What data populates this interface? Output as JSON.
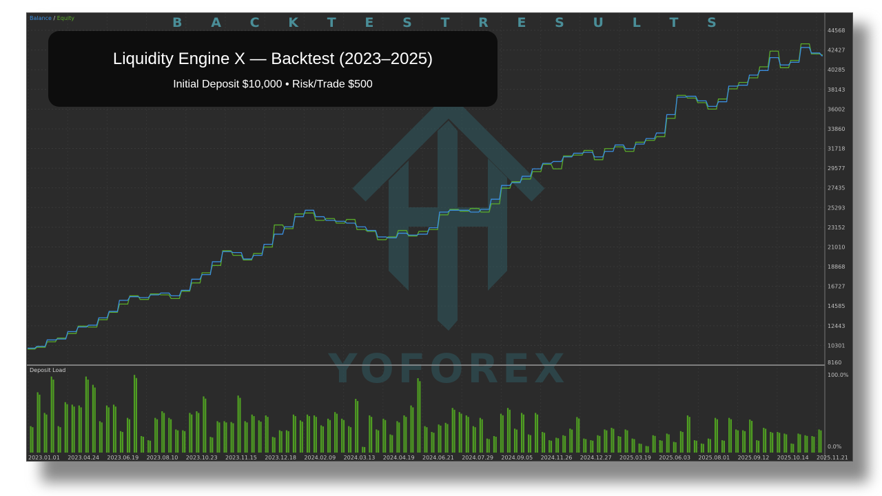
{
  "headline": [
    "B",
    "A",
    "C",
    "K",
    "T",
    "E",
    "S",
    "T",
    "R",
    "E",
    "S",
    "U",
    "L",
    "T",
    "S"
  ],
  "title_box": {
    "title": "Liquidity Engine X — Backtest (2023–2025)",
    "subtitle": "Initial Deposit $10,000 • Risk/Trade $500"
  },
  "watermark": {
    "text": "YOFOREX"
  },
  "colors": {
    "balance": "#3a8ee0",
    "equity": "#5aab2a",
    "bars": "#4f9e22",
    "headline": "#4a8e98",
    "background": "#2b2b2b"
  },
  "chart_data": [
    {
      "type": "line",
      "legend": {
        "balance_label": "Balance",
        "separator": " / ",
        "equity_label": "Equity",
        "placement": "top-left"
      },
      "x_tick_labels": [
        "2023.01.01",
        "2023.04.24",
        "2023.06.19",
        "2023.08.10",
        "2023.10.23",
        "2023.11.15",
        "2023.12.18",
        "2024.02.09",
        "2024.03.13",
        "2024.04.19",
        "2024.06.21",
        "2024.07.29",
        "2024.09.05",
        "2024.11.26",
        "2024.12.27",
        "2025.03.19",
        "2025.06.03",
        "2025.08.01",
        "2025.09.12",
        "2025.10.14",
        "2025.11.21"
      ],
      "y_tick_labels": [
        "44568",
        "42427",
        "40285",
        "38143",
        "36002",
        "33860",
        "31718",
        "29577",
        "27435",
        "25293",
        "23152",
        "21010",
        "18868",
        "16727",
        "14585",
        "12443",
        "10301",
        "8160"
      ],
      "ylim": [
        8160,
        44568
      ],
      "grid": true,
      "series": [
        {
          "name": "Balance",
          "values": [
            10000,
            10200,
            10900,
            11000,
            11800,
            12300,
            12500,
            13300,
            14000,
            15200,
            15600,
            15500,
            15800,
            16000,
            15700,
            16300,
            17500,
            18000,
            19400,
            20500,
            20400,
            19700,
            20100,
            21300,
            22400,
            23200,
            24300,
            25000,
            24300,
            23900,
            23800,
            23600,
            23200,
            22800,
            22100,
            22000,
            22500,
            22300,
            22400,
            23100,
            24800,
            25000,
            25000,
            24800,
            25100,
            26200,
            27700,
            28000,
            28700,
            29500,
            30100,
            30300,
            30800,
            31200,
            31300,
            30800,
            31400,
            32100,
            31700,
            32200,
            32800,
            33400,
            35400,
            37300,
            37400,
            36900,
            36300,
            36800,
            38500,
            38600,
            39700,
            40200,
            41600,
            40800,
            41100,
            42700,
            42100,
            41800
          ]
        },
        {
          "name": "Equity",
          "values": [
            9900,
            10100,
            10700,
            11100,
            11600,
            12400,
            12300,
            13100,
            13900,
            14800,
            15700,
            15300,
            15900,
            15800,
            15400,
            16200,
            17100,
            18200,
            19000,
            20600,
            20100,
            19600,
            20300,
            21000,
            23400,
            23000,
            24600,
            24700,
            23900,
            24100,
            23600,
            24000,
            22900,
            22700,
            21800,
            22100,
            22800,
            22200,
            22700,
            22900,
            24500,
            25100,
            24900,
            25200,
            24800,
            25700,
            27400,
            28100,
            28400,
            29200,
            30000,
            29500,
            30900,
            31000,
            31500,
            30500,
            31700,
            31900,
            31400,
            32400,
            32600,
            33000,
            35000,
            37500,
            37200,
            36700,
            36000,
            37100,
            38200,
            38900,
            39400,
            40600,
            42300,
            40500,
            41300,
            43100,
            42000,
            41900
          ]
        }
      ]
    },
    {
      "type": "bar",
      "title": "Deposit Load",
      "y_tick_labels": [
        "100.0%",
        "0.0%"
      ],
      "ylim": [
        0,
        100
      ],
      "values": [
        32,
        73,
        48,
        92,
        32,
        61,
        58,
        57,
        92,
        82,
        38,
        57,
        58,
        26,
        42,
        94,
        20,
        15,
        42,
        50,
        42,
        28,
        27,
        48,
        50,
        68,
        19,
        38,
        38,
        37,
        69,
        38,
        46,
        39,
        45,
        19,
        27,
        27,
        46,
        39,
        46,
        45,
        33,
        41,
        49,
        41,
        32,
        65,
        7,
        45,
        28,
        41,
        22,
        38,
        45,
        57,
        90,
        32,
        25,
        34,
        36,
        54,
        49,
        45,
        32,
        42,
        17,
        20,
        47,
        54,
        29,
        48,
        22,
        48,
        25,
        15,
        18,
        21,
        29,
        43,
        17,
        15,
        21,
        28,
        30,
        20,
        28,
        17,
        11,
        8,
        21,
        15,
        23,
        13,
        26,
        45,
        15,
        11,
        17,
        42,
        15,
        42,
        28,
        27,
        40,
        15,
        30,
        25,
        25,
        23,
        11,
        23,
        21,
        20,
        28
      ]
    }
  ]
}
